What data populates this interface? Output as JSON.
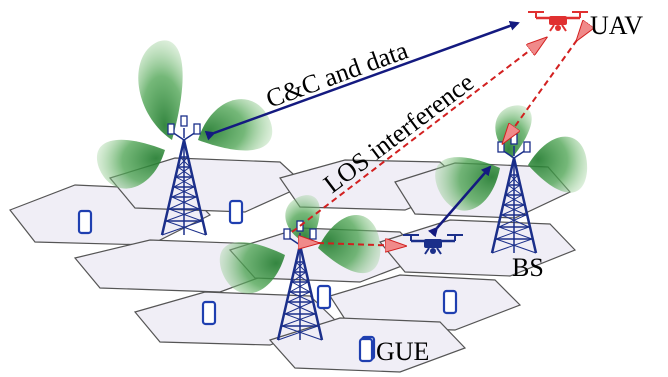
{
  "labels": {
    "uav": "UAV",
    "cc_link": "C&C and data",
    "los_interference": "LOS interference",
    "bs": "BS",
    "gue": "GUE"
  },
  "colors": {
    "cell_fill": "#f0eef6",
    "cell_stroke": "#555555",
    "beam": "#2f8f3a",
    "tower": "#1b2f8a",
    "device": "#1f3fb0",
    "cc_arrow": "#141a80",
    "interference": "#d22020",
    "uav_red": "#e03030",
    "uav_blue": "#1b2f8a"
  },
  "icons": [
    "bs-tower-icon",
    "uav-drone-icon",
    "smartphone-icon",
    "antenna-beam-icon"
  ]
}
